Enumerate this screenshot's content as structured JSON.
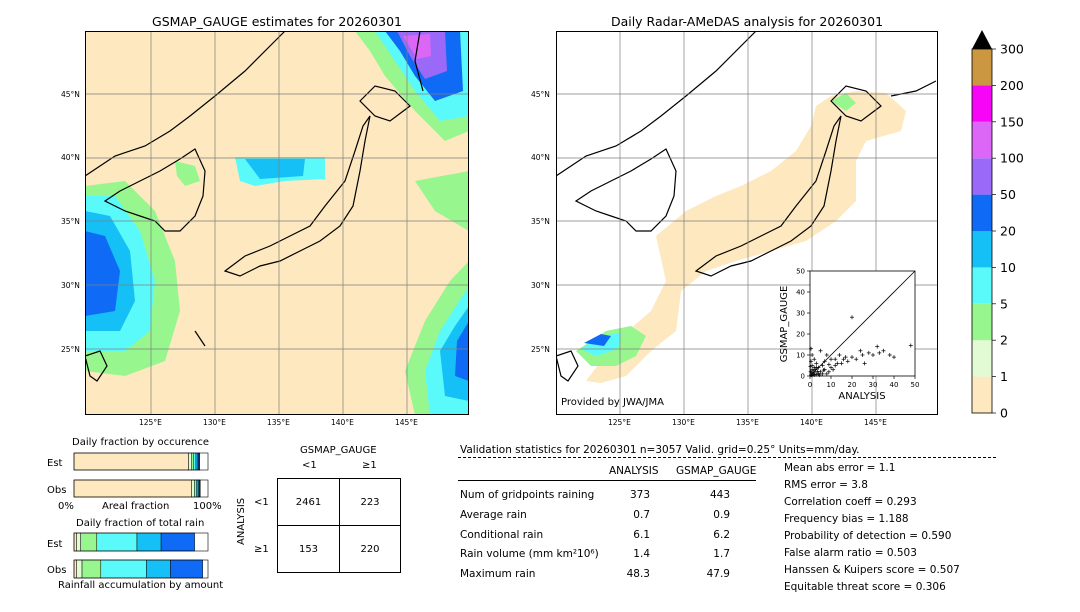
{
  "map_left": {
    "title": "GSMAP_GAUGE estimates for 20260301",
    "lat_labels": [
      "45°N",
      "40°N",
      "35°N",
      "30°N",
      "25°N"
    ],
    "lon_labels": [
      "125°E",
      "130°E",
      "135°E",
      "140°E",
      "145°E"
    ]
  },
  "map_right": {
    "title": "Daily Radar-AMeDAS analysis for 20260301",
    "lat_labels": [
      "45°N",
      "40°N",
      "35°N",
      "30°N",
      "25°N"
    ],
    "lon_labels": [
      "125°E",
      "130°E",
      "135°E",
      "140°E",
      "145°E"
    ],
    "credit": "Provided by JWA/JMA"
  },
  "colorbar": {
    "labels": [
      "0",
      "1",
      "2",
      "5",
      "10",
      "20",
      "50",
      "100",
      "150",
      "200",
      "300"
    ],
    "colors": [
      "#fde8bf",
      "#e3fbd4",
      "#98f68f",
      "#5bfafa",
      "#14c0f5",
      "#0f6af5",
      "#9b69f7",
      "#dc66f6",
      "#f705f7",
      "#cb9741"
    ],
    "extend_color": "#000000"
  },
  "chart_data": [
    {
      "type": "scatter",
      "xlabel": "ANALYSIS",
      "ylabel": "GSMAP_GAUGE",
      "xlim": [
        0,
        50
      ],
      "ylim": [
        0,
        50
      ],
      "x_ticks": [
        "0",
        "10",
        "20",
        "30",
        "40",
        "50"
      ],
      "y_ticks": [
        "0",
        "10",
        "20",
        "30",
        "40",
        "50"
      ],
      "points": [
        [
          0.5,
          0.5
        ],
        [
          1,
          0.3
        ],
        [
          1.5,
          1
        ],
        [
          2,
          0.5
        ],
        [
          0.3,
          2
        ],
        [
          1,
          3
        ],
        [
          2,
          1.5
        ],
        [
          3,
          0.8
        ],
        [
          2.5,
          3
        ],
        [
          4,
          1
        ],
        [
          1,
          5
        ],
        [
          0.5,
          7
        ],
        [
          3,
          4
        ],
        [
          5,
          2
        ],
        [
          6,
          1
        ],
        [
          4,
          4
        ],
        [
          2,
          8
        ],
        [
          1,
          10
        ],
        [
          0.5,
          13
        ],
        [
          3,
          6
        ],
        [
          7,
          3
        ],
        [
          8,
          1
        ],
        [
          6,
          5
        ],
        [
          9,
          2
        ],
        [
          10,
          4
        ],
        [
          11,
          3
        ],
        [
          12,
          5
        ],
        [
          13,
          6
        ],
        [
          15,
          6
        ],
        [
          16,
          8
        ],
        [
          18,
          7
        ],
        [
          20,
          9
        ],
        [
          22,
          8
        ],
        [
          25,
          10
        ],
        [
          28,
          11
        ],
        [
          30,
          10
        ],
        [
          33,
          11
        ],
        [
          35,
          12
        ],
        [
          38,
          10
        ],
        [
          40,
          9
        ],
        [
          48,
          14.5
        ],
        [
          20,
          28
        ],
        [
          5,
          12
        ],
        [
          8,
          10
        ],
        [
          10,
          8
        ],
        [
          14,
          10
        ],
        [
          17,
          9
        ],
        [
          24,
          12
        ],
        [
          2,
          4
        ],
        [
          0.8,
          1.8
        ],
        [
          1.8,
          2.5
        ],
        [
          3.5,
          2.2
        ],
        [
          4.5,
          0.5
        ],
        [
          6.5,
          2.8
        ],
        [
          0.2,
          4.5
        ],
        [
          7,
          7
        ],
        [
          9,
          5.5
        ],
        [
          12,
          8
        ],
        [
          26,
          6
        ],
        [
          32,
          14
        ]
      ]
    },
    {
      "type": "bar",
      "title": "Daily fraction by occurence",
      "categories": [
        "Est",
        "Obs"
      ],
      "x_labels": [
        "0%",
        "Areal fraction",
        "100%"
      ],
      "series": [
        {
          "category": "Est",
          "fractions": [
            0.855,
            0.02,
            0.015,
            0.02,
            0.015,
            0.008,
            0.005
          ]
        },
        {
          "category": "Obs",
          "fractions": [
            0.878,
            0.02,
            0.015,
            0.012,
            0.008,
            0.006,
            0.003
          ]
        }
      ]
    },
    {
      "type": "bar",
      "title": "Daily fraction of total rain",
      "categories": [
        "Est",
        "Obs"
      ],
      "x_labels": [
        "Rainfall accumulation by amount"
      ],
      "series": [
        {
          "category": "Est",
          "fractions": [
            0.02,
            0.03,
            0.12,
            0.3,
            0.18,
            0.25
          ]
        },
        {
          "category": "Obs",
          "fractions": [
            0.02,
            0.04,
            0.14,
            0.34,
            0.18,
            0.24
          ]
        }
      ]
    },
    {
      "type": "table",
      "title": "GSMAP_GAUGE",
      "col_labels": [
        "<1",
        "≥1"
      ],
      "row_axis_label": "ANALYSIS",
      "row_labels": [
        "<1",
        "≥1"
      ],
      "cells": [
        [
          "2461",
          "223"
        ],
        [
          "153",
          "220"
        ]
      ]
    }
  ],
  "validation": {
    "header": "Validation statistics for 20260301  n=3057 Valid. grid=0.25° Units=mm/day.",
    "col_analysis": "ANALYSIS",
    "col_gsmap": "GSMAP_GAUGE",
    "rows": [
      {
        "label": "Num of gridpoints raining",
        "analysis": "373",
        "gsmap": "443"
      },
      {
        "label": "Average rain",
        "analysis": "0.7",
        "gsmap": "0.9"
      },
      {
        "label": "Conditional rain",
        "analysis": "6.1",
        "gsmap": "6.2"
      },
      {
        "label": "Rain volume (mm km²10⁶)",
        "analysis": "1.4",
        "gsmap": "1.7"
      },
      {
        "label": "Maximum rain",
        "analysis": "48.3",
        "gsmap": "47.9"
      }
    ],
    "scores": [
      "Mean abs error =    1.1",
      "RMS error =    3.8",
      "Correlation coeff =  0.293",
      "Frequency bias =  1.188",
      "Probability of detection =  0.590",
      "False alarm ratio =  0.503",
      "Hanssen & Kuipers score =  0.507",
      "Equitable threat score =  0.306"
    ]
  }
}
